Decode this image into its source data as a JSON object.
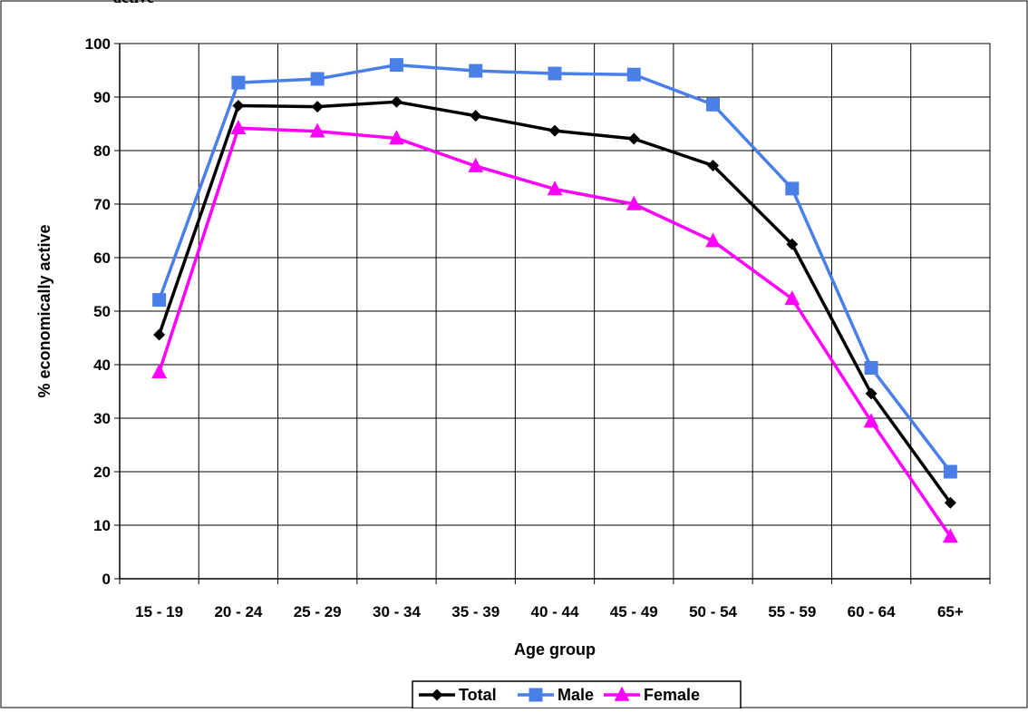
{
  "chart_data": {
    "type": "line",
    "title": "active",
    "xlabel": "Age group",
    "ylabel": "% economically active",
    "ylim": [
      0,
      100
    ],
    "yticks": [
      0,
      10,
      20,
      30,
      40,
      50,
      60,
      70,
      80,
      90,
      100
    ],
    "categories": [
      "15 - 19",
      "20 - 24",
      "25 - 29",
      "30 - 34",
      "35 - 39",
      "40 - 44",
      "45 - 49",
      "50 - 54",
      "55 - 59",
      "60 - 64",
      "65+"
    ],
    "grid": true,
    "legend_position": "bottom",
    "series": [
      {
        "name": "Total",
        "color": "#000000",
        "marker": "diamond",
        "values": [
          45.6,
          88.4,
          88.2,
          89.1,
          86.5,
          83.7,
          82.2,
          77.2,
          62.5,
          34.6,
          14.2
        ]
      },
      {
        "name": "Male",
        "color": "#4a7fe8",
        "marker": "square",
        "values": [
          52.1,
          92.7,
          93.4,
          96.0,
          94.9,
          94.4,
          94.2,
          88.6,
          72.9,
          39.4,
          20.0
        ]
      },
      {
        "name": "Female",
        "color": "#ff00ff",
        "marker": "triangle",
        "values": [
          38.6,
          84.2,
          83.6,
          82.3,
          77.1,
          72.8,
          70.0,
          63.1,
          52.3,
          29.4,
          7.9
        ]
      }
    ]
  }
}
